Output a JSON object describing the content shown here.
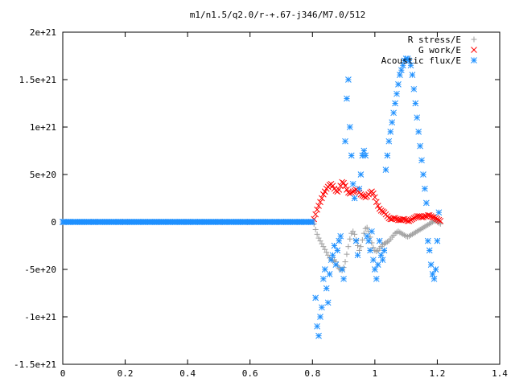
{
  "chart_data": {
    "type": "scatter",
    "title": "m1/n1.5/q2.0/r-+.67-j346/M7.0/512",
    "xlabel": "",
    "ylabel": "",
    "xlim": [
      0,
      1.4
    ],
    "ylim": [
      -1.5e+21,
      2e+21
    ],
    "xticks": [
      {
        "value": 0,
        "label": "0"
      },
      {
        "value": 0.2,
        "label": "0.2"
      },
      {
        "value": 0.4,
        "label": "0.4"
      },
      {
        "value": 0.6,
        "label": "0.6"
      },
      {
        "value": 0.8,
        "label": "0.8"
      },
      {
        "value": 1.0,
        "label": "1"
      },
      {
        "value": 1.2,
        "label": "1.2"
      },
      {
        "value": 1.4,
        "label": "1.4"
      }
    ],
    "yticks": [
      {
        "value": 2e+21,
        "label": "2e+21"
      },
      {
        "value": 1.5e+21,
        "label": "1.5e+21"
      },
      {
        "value": 1e+21,
        "label": "1e+21"
      },
      {
        "value": 5e+20,
        "label": "5e+20"
      },
      {
        "value": 0,
        "label": "0"
      },
      {
        "value": -5e+20,
        "label": "-5e+20"
      },
      {
        "value": -1e+21,
        "label": "-1e+21"
      },
      {
        "value": -1.5e+21,
        "label": "-1.5e+21"
      }
    ],
    "grid": false,
    "legend_position": "top-right",
    "series": [
      {
        "name": "R stress/E",
        "marker": "plus",
        "color": "#a0a0a0",
        "x": [
          0.0,
          0.1,
          0.2,
          0.3,
          0.4,
          0.5,
          0.6,
          0.7,
          0.8,
          0.805,
          0.81,
          0.815,
          0.82,
          0.825,
          0.83,
          0.835,
          0.84,
          0.845,
          0.85,
          0.855,
          0.86,
          0.865,
          0.87,
          0.875,
          0.88,
          0.885,
          0.89,
          0.895,
          0.9,
          0.905,
          0.91,
          0.915,
          0.92,
          0.925,
          0.93,
          0.935,
          0.94,
          0.945,
          0.95,
          0.955,
          0.96,
          0.965,
          0.97,
          0.975,
          0.98,
          0.985,
          0.99,
          0.995,
          1.0,
          1.005,
          1.01,
          1.015,
          1.02,
          1.025,
          1.03,
          1.035,
          1.04,
          1.045,
          1.05,
          1.055,
          1.06,
          1.065,
          1.07,
          1.075,
          1.08,
          1.085,
          1.09,
          1.095,
          1.1,
          1.105,
          1.11,
          1.115,
          1.12,
          1.125,
          1.13,
          1.135,
          1.14,
          1.145,
          1.15,
          1.155,
          1.16,
          1.165,
          1.17,
          1.175,
          1.18,
          1.185,
          1.19,
          1.195,
          1.2,
          1.205,
          1.21
        ],
        "y": [
          0,
          0,
          0,
          0,
          0,
          0,
          0,
          0,
          0,
          -2e+19,
          -8e+19,
          -1.3e+20,
          -1.7e+20,
          -2e+20,
          -2.3e+20,
          -2.6e+20,
          -2.9e+20,
          -3.2e+20,
          -3.5e+20,
          -3.8e+20,
          -4e+20,
          -4.1e+20,
          -4e+20,
          -4.2e+20,
          -4.6e+20,
          -4.9e+20,
          -5e+20,
          -5.1e+20,
          -4.8e+20,
          -4.2e+20,
          -3.4e+20,
          -2.6e+20,
          -1.8e+20,
          -1.2e+20,
          -1e+20,
          -1.3e+20,
          -1.9e+20,
          -2.5e+20,
          -3e+20,
          -2.6e+20,
          -1.9e+20,
          -1.2e+20,
          -7e+19,
          -6e+19,
          -1e+20,
          -1.6e+20,
          -2.2e+20,
          -2.7e+20,
          -3e+20,
          -3.1e+20,
          -3e+20,
          -2.8e+20,
          -2.6e+20,
          -2.4e+20,
          -2.3e+20,
          -2.2e+20,
          -2.1e+20,
          -2e+20,
          -1.8e+20,
          -1.6e+20,
          -1.4e+20,
          -1.2e+20,
          -1.1e+20,
          -1e+20,
          -1.1e+20,
          -1.2e+20,
          -1.3e+20,
          -1.4e+20,
          -1.5e+20,
          -1.55e+20,
          -1.5e+20,
          -1.4e+20,
          -1.3e+20,
          -1.2e+20,
          -1.1e+20,
          -1e+20,
          -9e+19,
          -8e+19,
          -7e+19,
          -6e+19,
          -5e+19,
          -4e+19,
          -3e+19,
          -2e+19,
          -1e+19,
          0,
          1e+19,
          1e+19,
          0,
          -1e+19,
          -2e+19
        ]
      },
      {
        "name": "G work/E",
        "marker": "cross",
        "color": "#ff0000",
        "x": [
          0.0,
          0.1,
          0.2,
          0.3,
          0.4,
          0.5,
          0.6,
          0.7,
          0.8,
          0.805,
          0.81,
          0.815,
          0.82,
          0.825,
          0.83,
          0.835,
          0.84,
          0.845,
          0.85,
          0.855,
          0.86,
          0.865,
          0.87,
          0.875,
          0.88,
          0.885,
          0.89,
          0.895,
          0.9,
          0.905,
          0.91,
          0.915,
          0.92,
          0.925,
          0.93,
          0.935,
          0.94,
          0.945,
          0.95,
          0.955,
          0.96,
          0.965,
          0.97,
          0.975,
          0.98,
          0.985,
          0.99,
          0.995,
          1.0,
          1.005,
          1.01,
          1.015,
          1.02,
          1.025,
          1.03,
          1.035,
          1.04,
          1.045,
          1.05,
          1.055,
          1.06,
          1.065,
          1.07,
          1.075,
          1.08,
          1.085,
          1.09,
          1.095,
          1.1,
          1.105,
          1.11,
          1.115,
          1.12,
          1.125,
          1.13,
          1.135,
          1.14,
          1.145,
          1.15,
          1.155,
          1.16,
          1.165,
          1.17,
          1.175,
          1.18,
          1.185,
          1.19,
          1.195,
          1.2,
          1.205,
          1.21
        ],
        "y": [
          0,
          0,
          0,
          0,
          0,
          0,
          0,
          0,
          0,
          3e+19,
          8e+19,
          1.3e+20,
          1.7e+20,
          2.1e+20,
          2.5e+20,
          2.9e+20,
          3.2e+20,
          3.5e+20,
          3.7e+20,
          3.9e+20,
          4e+20,
          3.8e+20,
          3.5e+20,
          3.3e+20,
          3.2e+20,
          3.4e+20,
          3.8e+20,
          4.2e+20,
          4.1e+20,
          3.8e+20,
          3.4e+20,
          3.1e+20,
          3e+20,
          3.1e+20,
          3.2e+20,
          3.3e+20,
          3.4e+20,
          3.3e+20,
          3.1e+20,
          2.9e+20,
          2.8e+20,
          2.7e+20,
          2.6e+20,
          2.7e+20,
          2.9e+20,
          3.1e+20,
          3.2e+20,
          3e+20,
          2.6e+20,
          2.1e+20,
          1.7e+20,
          1.4e+20,
          1.2e+20,
          1.1e+20,
          1e+20,
          8e+19,
          6e+19,
          4e+19,
          3e+19,
          3e+19,
          4e+19,
          4e+19,
          3e+19,
          2e+19,
          2e+19,
          2e+19,
          3e+19,
          3e+19,
          2e+19,
          1e+19,
          1e+19,
          2e+19,
          3e+19,
          4e+19,
          5e+19,
          6e+19,
          6e+19,
          6e+19,
          5e+19,
          5e+19,
          6e+19,
          6e+19,
          7e+19,
          7e+19,
          6e+19,
          5e+19,
          5e+19,
          4e+19,
          3e+19,
          2e+19,
          1e+19
        ]
      },
      {
        "name": "Acoustic flux/E",
        "marker": "star",
        "color": "#1e90ff",
        "x": [
          0.0,
          0.02,
          0.04,
          0.06,
          0.08,
          0.1,
          0.12,
          0.14,
          0.16,
          0.18,
          0.2,
          0.22,
          0.24,
          0.26,
          0.28,
          0.3,
          0.32,
          0.34,
          0.36,
          0.38,
          0.4,
          0.42,
          0.44,
          0.46,
          0.48,
          0.5,
          0.52,
          0.54,
          0.56,
          0.58,
          0.6,
          0.62,
          0.64,
          0.66,
          0.68,
          0.7,
          0.72,
          0.74,
          0.76,
          0.78,
          0.8,
          0.81,
          0.815,
          0.82,
          0.825,
          0.83,
          0.835,
          0.84,
          0.845,
          0.85,
          0.855,
          0.86,
          0.865,
          0.87,
          0.875,
          0.88,
          0.885,
          0.89,
          0.895,
          0.9,
          0.905,
          0.91,
          0.915,
          0.92,
          0.925,
          0.93,
          0.935,
          0.94,
          0.945,
          0.95,
          0.955,
          0.96,
          0.965,
          0.97,
          0.975,
          0.98,
          0.985,
          0.99,
          0.995,
          1.0,
          1.005,
          1.01,
          1.015,
          1.02,
          1.025,
          1.03,
          1.035,
          1.04,
          1.045,
          1.05,
          1.055,
          1.06,
          1.065,
          1.07,
          1.075,
          1.08,
          1.085,
          1.09,
          1.095,
          1.1,
          1.105,
          1.11,
          1.115,
          1.12,
          1.125,
          1.13,
          1.135,
          1.14,
          1.145,
          1.15,
          1.155,
          1.16,
          1.165,
          1.17,
          1.175,
          1.18,
          1.185,
          1.19,
          1.195,
          1.2,
          1.205
        ],
        "y": [
          0,
          0,
          0,
          0,
          0,
          0,
          0,
          0,
          0,
          0,
          0,
          0,
          0,
          0,
          0,
          0,
          0,
          0,
          0,
          0,
          0,
          0,
          0,
          0,
          0,
          0,
          0,
          0,
          0,
          0,
          0,
          0,
          0,
          0,
          0,
          0,
          0,
          0,
          0,
          0,
          0,
          -8e+20,
          -1.1e+21,
          -1.2e+21,
          -1e+21,
          -9e+20,
          -6e+20,
          -5e+20,
          -7e+20,
          -8.5e+20,
          -5.5e+20,
          -4e+20,
          -3.5e+20,
          -2.5e+20,
          -4.5e+20,
          -3e+20,
          -2e+20,
          -1.5e+20,
          -5e+20,
          -6e+20,
          8.5e+20,
          1.3e+21,
          1.5e+21,
          1e+21,
          7e+20,
          4e+20,
          2.5e+20,
          -2e+20,
          -3.5e+20,
          3.5e+20,
          5e+20,
          7e+20,
          7.5e+20,
          7e+20,
          -1.5e+20,
          -2e+20,
          -3e+20,
          -1e+20,
          -4e+20,
          -5e+20,
          -6e+20,
          -4.5e+20,
          -2e+20,
          -3.5e+20,
          -4e+20,
          -3e+20,
          5.5e+20,
          7e+20,
          8.5e+20,
          9.5e+20,
          1.05e+21,
          1.15e+21,
          1.25e+21,
          1.35e+21,
          1.45e+21,
          1.55e+21,
          1.6e+21,
          1.65e+21,
          1.7e+21,
          1.72e+21,
          1.72e+21,
          1.7e+21,
          1.65e+21,
          1.55e+21,
          1.4e+21,
          1.25e+21,
          1.1e+21,
          9.5e+20,
          8e+20,
          6.5e+20,
          5e+20,
          3.5e+20,
          2e+20,
          -2e+20,
          -3e+20,
          -4.5e+20,
          -5.5e+20,
          -6e+20,
          -5e+20,
          -2e+20,
          1e+20
        ]
      }
    ]
  }
}
